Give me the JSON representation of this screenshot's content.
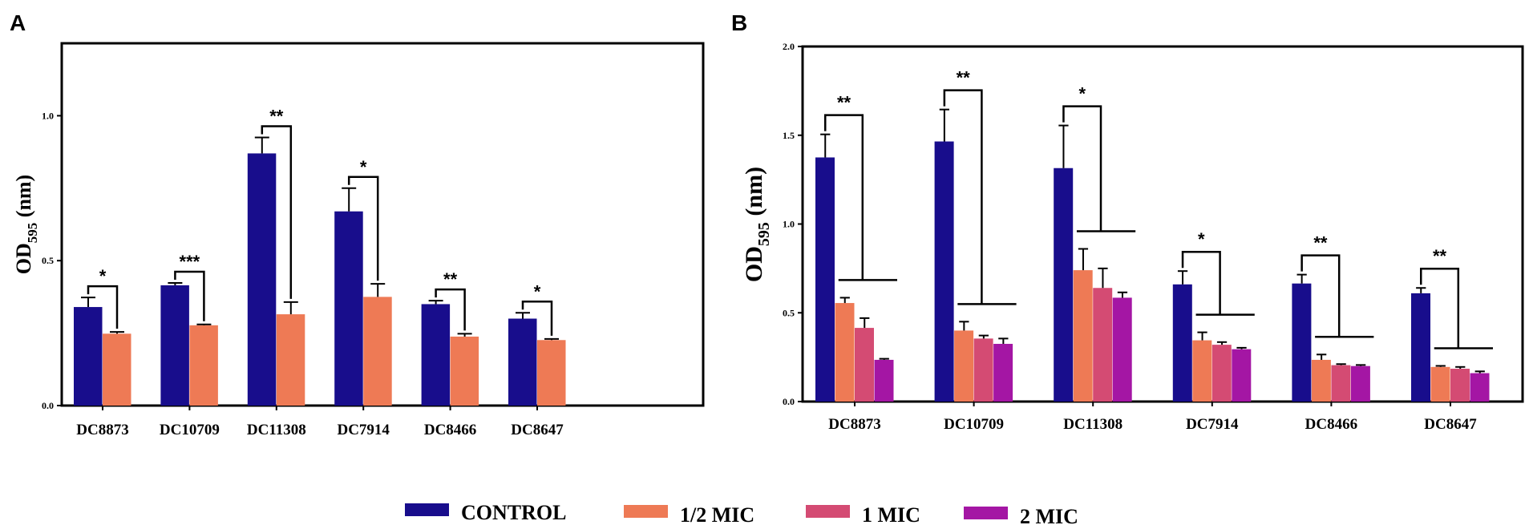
{
  "chart_data": [
    {
      "panel": "A",
      "type": "bar",
      "ylabel_main": "OD",
      "ylabel_sub": "595",
      "ylabel_unit": " (nm)",
      "ylim": [
        0,
        1.25
      ],
      "yticks": [
        0.0,
        0.5,
        1.0
      ],
      "ytick_labels": [
        "0.0",
        "0.5",
        "1.0"
      ],
      "categories": [
        "DC8873",
        "DC10709",
        "DC11308",
        "DC7914",
        "DC8466",
        "DC8647"
      ],
      "series": [
        {
          "name": "CONTROL",
          "color": "#180d8c",
          "values": [
            0.34,
            0.415,
            0.87,
            0.67,
            0.35,
            0.3
          ],
          "errors": [
            0.033,
            0.008,
            0.055,
            0.08,
            0.012,
            0.02
          ]
        },
        {
          "name": "1/2 MIC",
          "color": "#ee7a55",
          "values": [
            0.248,
            0.277,
            0.315,
            0.375,
            0.238,
            0.226
          ],
          "errors": [
            0.006,
            0.003,
            0.042,
            0.045,
            0.01,
            0.004
          ]
        }
      ],
      "significance": [
        "*",
        "***",
        "**",
        "*",
        "**",
        "*"
      ]
    },
    {
      "panel": "B",
      "type": "bar",
      "ylabel_main": "OD",
      "ylabel_sub": "595",
      "ylabel_unit": " (nm)",
      "ylim": [
        0,
        2.0
      ],
      "yticks": [
        0.0,
        0.5,
        1.0,
        1.5,
        2.0
      ],
      "ytick_labels": [
        "0.0",
        "0.5",
        "1.0",
        "1.5",
        "2.0"
      ],
      "categories": [
        "DC8873",
        "DC10709",
        "DC11308",
        "DC7914",
        "DC8466",
        "DC8647"
      ],
      "series": [
        {
          "name": "CONTROL",
          "color": "#180d8c",
          "values": [
            1.375,
            1.465,
            1.315,
            0.66,
            0.665,
            0.61
          ],
          "errors": [
            0.13,
            0.18,
            0.24,
            0.075,
            0.05,
            0.03
          ]
        },
        {
          "name": "1/2 MIC",
          "color": "#ee7a55",
          "values": [
            0.555,
            0.4,
            0.74,
            0.345,
            0.235,
            0.195
          ],
          "errors": [
            0.03,
            0.05,
            0.12,
            0.045,
            0.03,
            0.006
          ]
        },
        {
          "name": "1 MIC",
          "color": "#d44b73",
          "values": [
            0.415,
            0.355,
            0.64,
            0.32,
            0.205,
            0.185
          ],
          "errors": [
            0.055,
            0.017,
            0.11,
            0.015,
            0.006,
            0.01
          ]
        },
        {
          "name": "2 MIC",
          "color": "#a416a4",
          "values": [
            0.235,
            0.325,
            0.585,
            0.295,
            0.2,
            0.16
          ],
          "errors": [
            0.006,
            0.03,
            0.03,
            0.008,
            0.006,
            0.01
          ]
        }
      ],
      "significance": [
        "**",
        "**",
        "*",
        "*",
        "**",
        "**"
      ]
    }
  ],
  "legend": [
    {
      "label": "CONTROL",
      "color": "#180d8c"
    },
    {
      "label": "1/2 MIC",
      "color": "#ee7a55"
    },
    {
      "label": "1 MIC",
      "color": "#d44b73"
    },
    {
      "label": "2 MIC",
      "color": "#a416a4"
    }
  ]
}
